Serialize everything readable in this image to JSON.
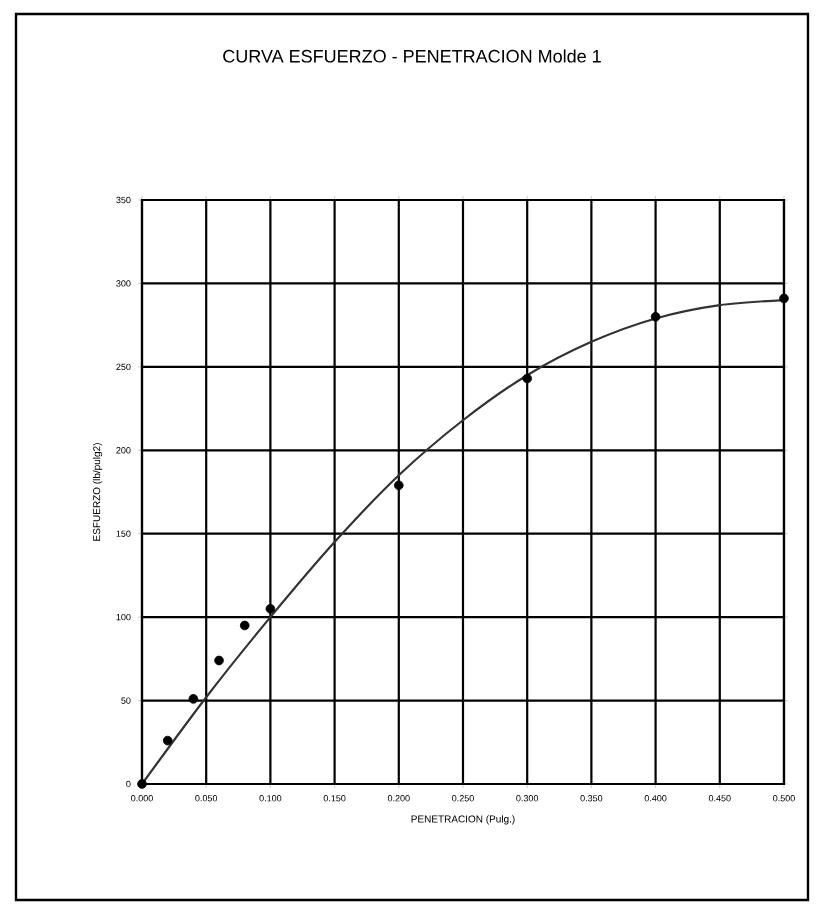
{
  "chart_data": {
    "type": "scatter",
    "title": "CURVA ESFUERZO - PENETRACION  Molde 1",
    "xlabel": "PENETRACION (Pulg.)",
    "ylabel": "ESFUERZO (lb/pulg2)",
    "xlim": [
      0,
      0.5
    ],
    "ylim": [
      0,
      350
    ],
    "xticks": [
      {
        "value": 0,
        "label": "0.000"
      },
      {
        "value": 0.05,
        "label": "0.050"
      },
      {
        "value": 0.1,
        "label": "0.100"
      },
      {
        "value": 0.15,
        "label": "0.150"
      },
      {
        "value": 0.2,
        "label": "0.200"
      },
      {
        "value": 0.25,
        "label": "0.250"
      },
      {
        "value": 0.3,
        "label": "0.300"
      },
      {
        "value": 0.35,
        "label": "0.350"
      },
      {
        "value": 0.4,
        "label": "0.400"
      },
      {
        "value": 0.45,
        "label": "0.450"
      },
      {
        "value": 0.5,
        "label": "0.500"
      }
    ],
    "yticks": [
      0,
      50,
      100,
      150,
      200,
      250,
      300,
      350
    ],
    "grid": true,
    "series": [
      {
        "marker": "circle",
        "color": "#000000",
        "x": [
          0,
          0.02,
          0.04,
          0.06,
          0.08,
          0.1,
          0.2,
          0.3,
          0.4,
          0.5
        ],
        "values": [
          0,
          26,
          51,
          74,
          95,
          105,
          179,
          243,
          280,
          291
        ]
      },
      {
        "type": "line",
        "marker": "none",
        "color": "#333333",
        "line_style": "solid",
        "x": [
          0,
          0.05,
          0.1,
          0.15,
          0.2,
          0.25,
          0.3,
          0.35,
          0.4,
          0.45,
          0.5
        ],
        "values": [
          0,
          52,
          100,
          145,
          185,
          218,
          245,
          265,
          279,
          287,
          290
        ]
      }
    ]
  }
}
